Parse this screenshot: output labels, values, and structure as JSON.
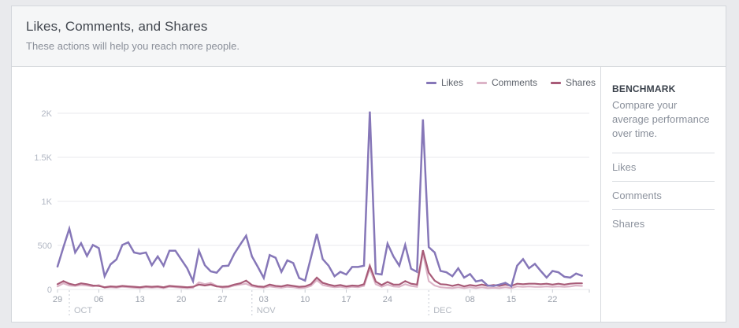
{
  "header": {
    "title": "Likes, Comments, and Shares",
    "subtitle": "These actions will help you reach more people."
  },
  "legend": [
    {
      "label": "Likes",
      "color": "#8677b8"
    },
    {
      "label": "Comments",
      "color": "#dcb4c7"
    },
    {
      "label": "Shares",
      "color": "#a85b78"
    }
  ],
  "benchmark": {
    "heading": "BENCHMARK",
    "description": "Compare your average performance over time.",
    "items": [
      "Likes",
      "Comments",
      "Shares"
    ]
  },
  "colors": {
    "page_bg": "#e9eaed",
    "card_bg": "#ffffff",
    "header_bg": "#f5f6f7",
    "border": "#d4d7dc",
    "gridline": "#e9eaee",
    "tick": "#c8ccd3",
    "month_dash": "#c6cad2"
  },
  "chart_data": {
    "type": "line",
    "x_description": "daily values, Sep 29 through Dec 27",
    "ylim": [
      0,
      2100
    ],
    "grid": "horizontal",
    "legend_position": "top-right",
    "y_ticks": [
      {
        "value": 0,
        "label": "0"
      },
      {
        "value": 500,
        "label": "500"
      },
      {
        "value": 1000,
        "label": "1K"
      },
      {
        "value": 1500,
        "label": "1.5K"
      },
      {
        "value": 2000,
        "label": "2K"
      }
    ],
    "x_ticks": [
      {
        "index": 0,
        "label": "29"
      },
      {
        "index": 7,
        "label": "06"
      },
      {
        "index": 14,
        "label": "13"
      },
      {
        "index": 21,
        "label": "20"
      },
      {
        "index": 28,
        "label": "27"
      },
      {
        "index": 35,
        "label": "03"
      },
      {
        "index": 42,
        "label": "10"
      },
      {
        "index": 49,
        "label": "17"
      },
      {
        "index": 56,
        "label": "24"
      },
      {
        "index": 70,
        "label": "08"
      },
      {
        "index": 77,
        "label": "15"
      },
      {
        "index": 84,
        "label": "22"
      }
    ],
    "month_markers": [
      {
        "index": 2,
        "label": "OCT"
      },
      {
        "index": 33,
        "label": "NOV"
      },
      {
        "index": 63,
        "label": "DEC"
      }
    ],
    "series": [
      {
        "name": "Comments",
        "color": "#dcb4c7",
        "width": 2.2,
        "values": [
          35,
          70,
          45,
          40,
          50,
          45,
          35,
          50,
          20,
          25,
          20,
          30,
          25,
          20,
          15,
          25,
          20,
          25,
          15,
          30,
          25,
          20,
          15,
          20,
          80,
          60,
          75,
          40,
          20,
          25,
          45,
          55,
          65,
          35,
          25,
          20,
          35,
          25,
          20,
          30,
          25,
          15,
          20,
          40,
          105,
          50,
          35,
          25,
          30,
          20,
          30,
          25,
          40,
          235,
          60,
          30,
          55,
          35,
          30,
          60,
          40,
          30,
          415,
          95,
          45,
          25,
          20,
          15,
          25,
          15,
          25,
          15,
          25,
          15,
          20,
          15,
          25,
          15,
          35,
          30,
          35,
          30,
          30,
          35,
          30,
          35,
          30,
          35,
          45,
          40
        ]
      },
      {
        "name": "Shares",
        "color": "#a85b78",
        "width": 2.2,
        "values": [
          60,
          95,
          65,
          50,
          70,
          60,
          45,
          40,
          25,
          35,
          30,
          40,
          35,
          30,
          25,
          35,
          30,
          35,
          25,
          40,
          35,
          30,
          25,
          30,
          55,
          45,
          55,
          35,
          30,
          35,
          55,
          70,
          100,
          50,
          35,
          30,
          55,
          40,
          35,
          50,
          40,
          30,
          35,
          60,
          135,
          75,
          55,
          40,
          50,
          35,
          45,
          40,
          60,
          270,
          90,
          50,
          85,
          55,
          55,
          95,
          65,
          55,
          445,
          190,
          100,
          60,
          55,
          40,
          55,
          35,
          50,
          40,
          55,
          40,
          50,
          40,
          55,
          40,
          65,
          60,
          65,
          65,
          60,
          65,
          55,
          65,
          55,
          65,
          70,
          70
        ]
      },
      {
        "name": "Likes",
        "color": "#8677b8",
        "width": 2.5,
        "values": [
          260,
          480,
          690,
          420,
          525,
          380,
          505,
          470,
          150,
          285,
          340,
          505,
          535,
          420,
          405,
          420,
          275,
          375,
          270,
          440,
          440,
          340,
          240,
          95,
          440,
          275,
          205,
          190,
          265,
          270,
          405,
          510,
          610,
          375,
          255,
          130,
          390,
          360,
          200,
          330,
          300,
          130,
          100,
          360,
          630,
          345,
          270,
          150,
          200,
          170,
          255,
          255,
          270,
          2020,
          180,
          170,
          520,
          375,
          270,
          505,
          235,
          200,
          1930,
          480,
          420,
          210,
          195,
          150,
          240,
          135,
          175,
          90,
          105,
          45,
          40,
          55,
          75,
          35,
          270,
          345,
          240,
          290,
          210,
          135,
          210,
          195,
          145,
          135,
          180,
          155
        ]
      }
    ]
  }
}
